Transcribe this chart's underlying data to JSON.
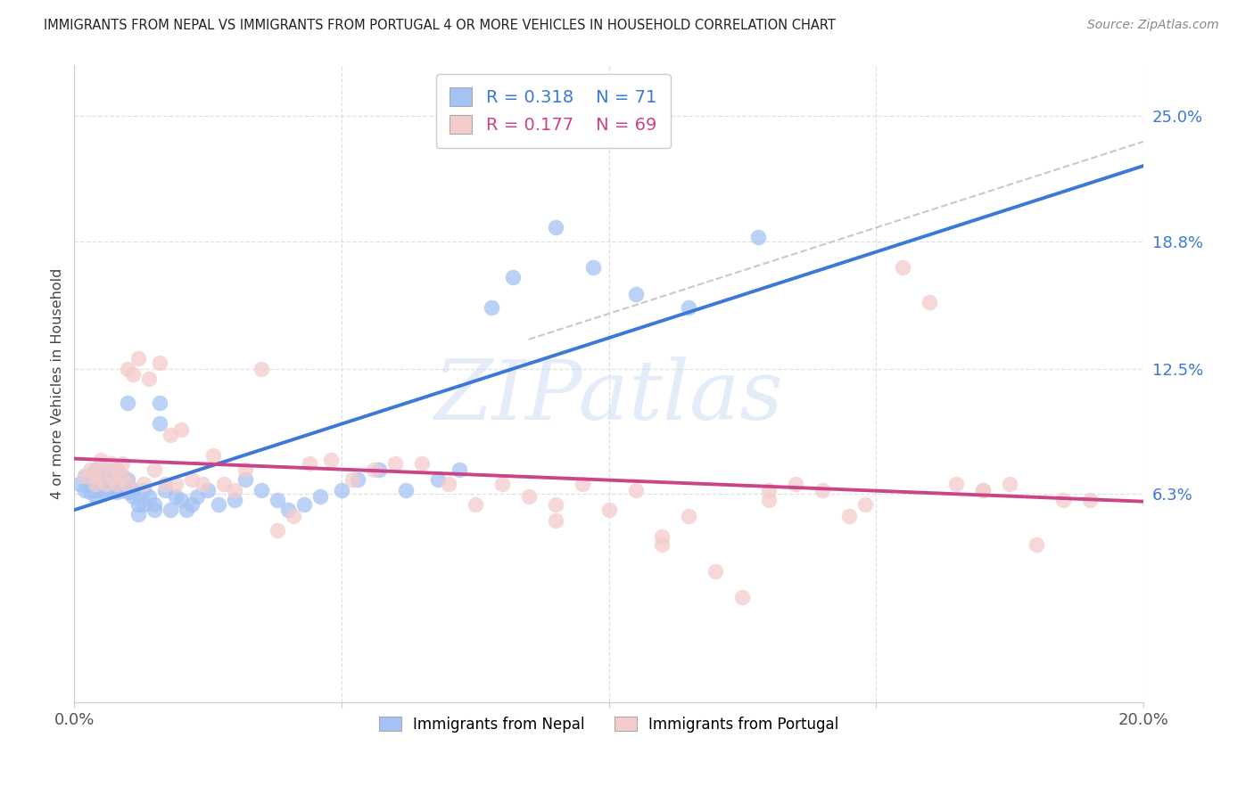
{
  "title": "IMMIGRANTS FROM NEPAL VS IMMIGRANTS FROM PORTUGAL 4 OR MORE VEHICLES IN HOUSEHOLD CORRELATION CHART",
  "source": "Source: ZipAtlas.com",
  "ylabel": "4 or more Vehicles in Household",
  "xlim": [
    0.0,
    0.2
  ],
  "ylim": [
    -0.04,
    0.275
  ],
  "ytick_vals": [
    0.063,
    0.125,
    0.188,
    0.25
  ],
  "ytick_labels": [
    "6.3%",
    "12.5%",
    "18.8%",
    "25.0%"
  ],
  "xtick_positions": [
    0.0,
    0.05,
    0.1,
    0.15,
    0.2
  ],
  "xtick_labels": [
    "0.0%",
    "",
    "",
    "",
    "20.0%"
  ],
  "nepal_R": 0.318,
  "nepal_N": 71,
  "portugal_R": 0.177,
  "portugal_N": 69,
  "nepal_scatter_color": "#a4c2f4",
  "portugal_scatter_color": "#f4cccc",
  "nepal_line_color": "#3c78d8",
  "portugal_line_color": "#cc4488",
  "gray_dash_color": "#bbbbbb",
  "watermark_color": "#d0ddf5",
  "grid_color": "#e0e0e0",
  "title_color": "#222222",
  "source_color": "#888888",
  "ylabel_color": "#444444",
  "ytick_color": "#3c78d8",
  "xtick_color": "#555555",
  "nepal_x": [
    0.001,
    0.002,
    0.002,
    0.003,
    0.003,
    0.003,
    0.004,
    0.004,
    0.004,
    0.005,
    0.005,
    0.005,
    0.005,
    0.006,
    0.006,
    0.006,
    0.006,
    0.007,
    0.007,
    0.007,
    0.007,
    0.008,
    0.008,
    0.008,
    0.009,
    0.009,
    0.009,
    0.01,
    0.01,
    0.01,
    0.01,
    0.011,
    0.011,
    0.012,
    0.012,
    0.013,
    0.013,
    0.014,
    0.015,
    0.015,
    0.016,
    0.016,
    0.017,
    0.018,
    0.019,
    0.02,
    0.021,
    0.022,
    0.023,
    0.025,
    0.027,
    0.03,
    0.032,
    0.035,
    0.038,
    0.04,
    0.043,
    0.046,
    0.05,
    0.053,
    0.057,
    0.062,
    0.068,
    0.072,
    0.078,
    0.082,
    0.09,
    0.097,
    0.105,
    0.115,
    0.128
  ],
  "nepal_y": [
    0.068,
    0.072,
    0.065,
    0.07,
    0.064,
    0.067,
    0.075,
    0.065,
    0.062,
    0.072,
    0.068,
    0.065,
    0.07,
    0.075,
    0.068,
    0.064,
    0.067,
    0.072,
    0.068,
    0.065,
    0.07,
    0.075,
    0.064,
    0.068,
    0.072,
    0.065,
    0.068,
    0.108,
    0.068,
    0.064,
    0.07,
    0.065,
    0.062,
    0.058,
    0.053,
    0.065,
    0.058,
    0.062,
    0.055,
    0.058,
    0.108,
    0.098,
    0.065,
    0.055,
    0.062,
    0.06,
    0.055,
    0.058,
    0.062,
    0.065,
    0.058,
    0.06,
    0.07,
    0.065,
    0.06,
    0.055,
    0.058,
    0.062,
    0.065,
    0.07,
    0.075,
    0.065,
    0.07,
    0.075,
    0.155,
    0.17,
    0.195,
    0.175,
    0.162,
    0.155,
    0.19
  ],
  "portugal_x": [
    0.002,
    0.003,
    0.004,
    0.004,
    0.005,
    0.005,
    0.006,
    0.007,
    0.007,
    0.008,
    0.008,
    0.009,
    0.009,
    0.01,
    0.01,
    0.011,
    0.012,
    0.013,
    0.014,
    0.015,
    0.016,
    0.017,
    0.018,
    0.019,
    0.02,
    0.022,
    0.024,
    0.026,
    0.028,
    0.03,
    0.032,
    0.035,
    0.038,
    0.041,
    0.044,
    0.048,
    0.052,
    0.056,
    0.06,
    0.065,
    0.07,
    0.075,
    0.08,
    0.085,
    0.09,
    0.095,
    0.1,
    0.105,
    0.11,
    0.115,
    0.12,
    0.125,
    0.13,
    0.135,
    0.14,
    0.148,
    0.155,
    0.16,
    0.165,
    0.17,
    0.175,
    0.18,
    0.185,
    0.19,
    0.17,
    0.145,
    0.13,
    0.11,
    0.09
  ],
  "portugal_y": [
    0.072,
    0.075,
    0.068,
    0.072,
    0.075,
    0.08,
    0.068,
    0.072,
    0.078,
    0.068,
    0.075,
    0.072,
    0.078,
    0.125,
    0.068,
    0.122,
    0.13,
    0.068,
    0.12,
    0.075,
    0.128,
    0.068,
    0.092,
    0.068,
    0.095,
    0.07,
    0.068,
    0.082,
    0.068,
    0.065,
    0.075,
    0.125,
    0.045,
    0.052,
    0.078,
    0.08,
    0.07,
    0.075,
    0.078,
    0.078,
    0.068,
    0.058,
    0.068,
    0.062,
    0.058,
    0.068,
    0.055,
    0.065,
    0.042,
    0.052,
    0.025,
    0.012,
    0.06,
    0.068,
    0.065,
    0.058,
    0.175,
    0.158,
    0.068,
    0.065,
    0.068,
    0.038,
    0.06,
    0.06,
    0.065,
    0.052,
    0.065,
    0.038,
    0.05
  ]
}
